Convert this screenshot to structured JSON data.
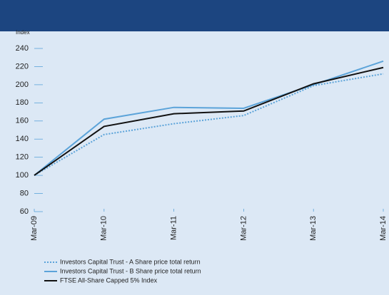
{
  "chart_data": {
    "type": "line",
    "y_label": "Index",
    "categories": [
      "Mar-09",
      "Mar-10",
      "Mar-11",
      "Mar-12",
      "Mar-13",
      "Mar-14"
    ],
    "series": [
      {
        "name": "Investors Capital Trust - A Share price total return",
        "color": "#5ba3d9",
        "style": "dotted",
        "values": [
          100,
          145,
          157,
          166,
          199,
          212
        ]
      },
      {
        "name": "Investors Capital Trust - B Share price total return",
        "color": "#5ba3d9",
        "style": "solid",
        "values": [
          100,
          162,
          175,
          174,
          200,
          226
        ]
      },
      {
        "name": "FTSE All-Share Capped 5% Index",
        "color": "#111111",
        "style": "solid",
        "values": [
          100,
          154,
          168,
          171,
          201,
          219
        ]
      }
    ],
    "ylim": [
      60,
      240
    ],
    "yticks": [
      60,
      80,
      100,
      120,
      140,
      160,
      180,
      200,
      220,
      240
    ],
    "legend": "bottom-left"
  }
}
